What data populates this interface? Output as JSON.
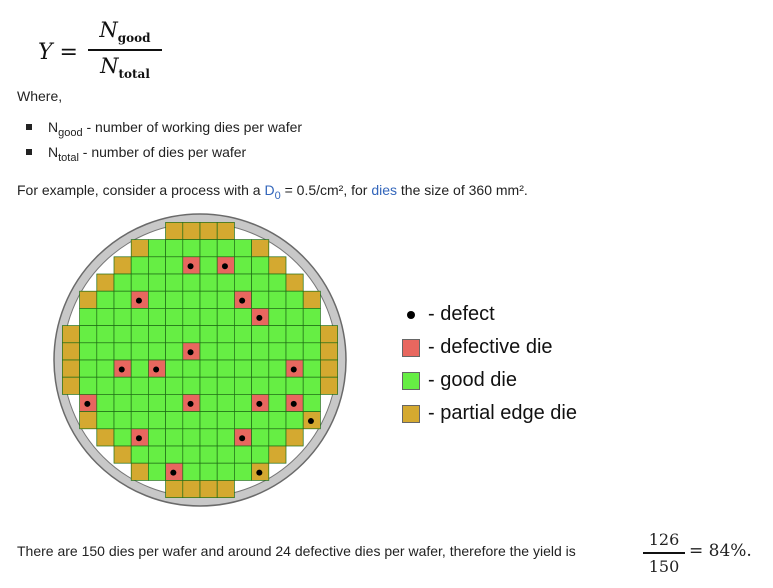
{
  "formula": {
    "lhs": "Y =",
    "num_base": "N",
    "num_sub": "good",
    "den_base": "N",
    "den_sub": "total"
  },
  "where_label": "Where,",
  "definitions": [
    {
      "base": "N",
      "sub": "good",
      "text": " - number of working dies per wafer"
    },
    {
      "base": "N",
      "sub": "total",
      "text": " - number of dies per wafer"
    }
  ],
  "example": {
    "pre": "For example, consider a process with a ",
    "d_base": "D",
    "d_sub": "0",
    "mid": " = 0.5/cm², for ",
    "link": "dies",
    "post": " the size of 360 mm²."
  },
  "legend": [
    {
      "label": "- defect",
      "kind": "defect"
    },
    {
      "label": "- defective die",
      "kind": "defective",
      "color": "#e8675f"
    },
    {
      "label": "- good die",
      "kind": "good",
      "color": "#66ee44"
    },
    {
      "label": "- partial edge die",
      "kind": "partial",
      "color": "#d4a930"
    }
  ],
  "colors": {
    "good": "#66ee44",
    "defective": "#e8675f",
    "partial": "#d4a930",
    "wafer_rim": "#c8c8c8",
    "grid_line": "#1f6d16"
  },
  "bottom": {
    "sentence": "There are 150 dies per wafer and around 24 defective dies per wafer, therefore the yield is",
    "numerator": "126",
    "denominator": "150",
    "result": "= 84%."
  }
}
